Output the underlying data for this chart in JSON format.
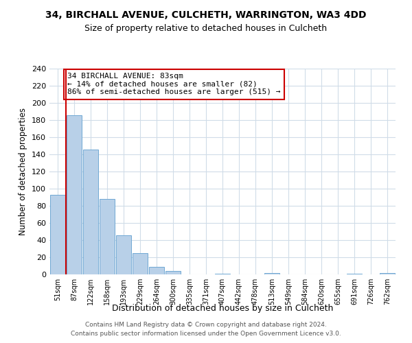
{
  "title": "34, BIRCHALL AVENUE, CULCHETH, WARRINGTON, WA3 4DD",
  "subtitle": "Size of property relative to detached houses in Culcheth",
  "xlabel": "Distribution of detached houses by size in Culcheth",
  "ylabel": "Number of detached properties",
  "bin_labels": [
    "51sqm",
    "87sqm",
    "122sqm",
    "158sqm",
    "193sqm",
    "229sqm",
    "264sqm",
    "300sqm",
    "335sqm",
    "371sqm",
    "407sqm",
    "442sqm",
    "478sqm",
    "513sqm",
    "549sqm",
    "584sqm",
    "620sqm",
    "655sqm",
    "691sqm",
    "726sqm",
    "762sqm"
  ],
  "bar_heights": [
    93,
    186,
    146,
    88,
    46,
    25,
    9,
    4,
    0,
    0,
    1,
    0,
    0,
    2,
    0,
    0,
    0,
    0,
    1,
    0,
    2
  ],
  "bar_color": "#b8d0e8",
  "bar_edge_color": "#6fa8d4",
  "vline_x": 0.5,
  "vline_color": "#cc0000",
  "annotation_box_text": "34 BIRCHALL AVENUE: 83sqm\n← 14% of detached houses are smaller (82)\n86% of semi-detached houses are larger (515) →",
  "annotation_box_color": "#cc0000",
  "ylim": [
    0,
    240
  ],
  "yticks": [
    0,
    20,
    40,
    60,
    80,
    100,
    120,
    140,
    160,
    180,
    200,
    220,
    240
  ],
  "footer_line1": "Contains HM Land Registry data © Crown copyright and database right 2024.",
  "footer_line2": "Contains public sector information licensed under the Open Government Licence v3.0.",
  "background_color": "#ffffff",
  "grid_color": "#d0dce8"
}
